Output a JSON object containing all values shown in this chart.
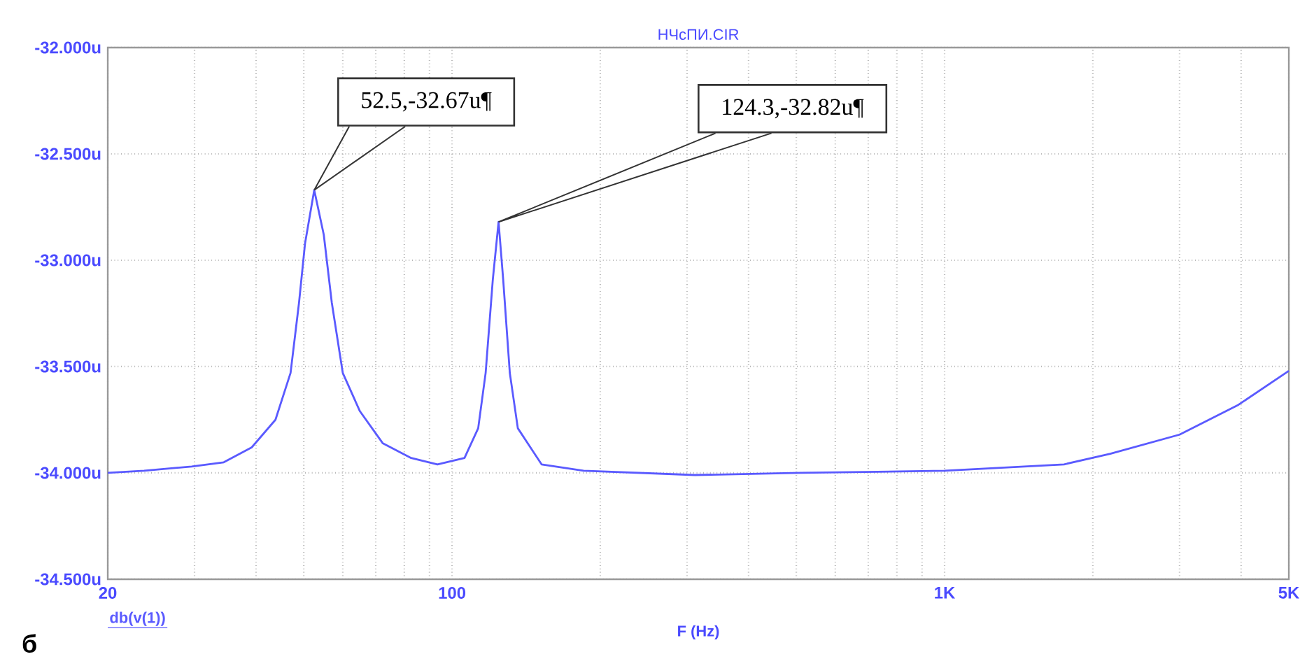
{
  "chart_data": {
    "type": "line",
    "title": "НЧсПИ.CIR",
    "xlabel": "F (Hz)",
    "log": "x",
    "grid": true,
    "xlim": [
      20,
      5000
    ],
    "ylim": [
      -34.5,
      -32.0
    ],
    "xticks": [
      20,
      {
        "value": 30,
        "label": null
      },
      {
        "value": 40,
        "label": null
      },
      {
        "value": 50,
        "label": null
      },
      {
        "value": 60,
        "label": null
      },
      {
        "value": 70,
        "label": null
      },
      {
        "value": 80,
        "label": null
      },
      {
        "value": 90,
        "label": null
      },
      100,
      {
        "value": 200,
        "label": null
      },
      {
        "value": 300,
        "label": null
      },
      {
        "value": 400,
        "label": null
      },
      {
        "value": 500,
        "label": null
      },
      {
        "value": 600,
        "label": null
      },
      {
        "value": 700,
        "label": null
      },
      {
        "value": 800,
        "label": null
      },
      {
        "value": 900,
        "label": null
      },
      {
        "value": 1000,
        "label": "1K"
      },
      {
        "value": 2000,
        "label": null
      },
      {
        "value": 3000,
        "label": null
      },
      {
        "value": 4000,
        "label": null
      },
      {
        "value": 5000,
        "label": "5K"
      }
    ],
    "yticks": [
      {
        "value": -34.5,
        "label": "-34.500u"
      },
      {
        "value": -34.0,
        "label": "-34.000u"
      },
      {
        "value": -33.5,
        "label": "-33.500u"
      },
      {
        "value": -33.0,
        "label": "-33.000u"
      },
      {
        "value": -32.5,
        "label": "-32.500u"
      },
      {
        "value": -32.0,
        "label": "-32.000u"
      }
    ],
    "series": [
      {
        "name": "db(v(1))",
        "color": "#5a5aff",
        "x": [
          20,
          23.7,
          29.6,
          34.4,
          39.2,
          43.8,
          47.0,
          48.9,
          50.3,
          52.5,
          54.9,
          57.0,
          60.0,
          65.0,
          72.3,
          82.6,
          93.4,
          106,
          113,
          117,
          121,
          124.3,
          127,
          131,
          136,
          152,
          185,
          311,
          510,
          1000,
          1748,
          2170,
          3000,
          3950,
          5000
        ],
        "values": [
          -34.0,
          -33.99,
          -33.97,
          -33.95,
          -33.88,
          -33.75,
          -33.53,
          -33.2,
          -32.92,
          -32.67,
          -32.88,
          -33.2,
          -33.53,
          -33.71,
          -33.86,
          -33.93,
          -33.96,
          -33.93,
          -33.79,
          -33.53,
          -33.09,
          -32.82,
          -33.09,
          -33.53,
          -33.79,
          -33.96,
          -33.99,
          -34.01,
          -34.0,
          -33.99,
          -33.96,
          -33.91,
          -33.82,
          -33.68,
          -33.52
        ]
      }
    ],
    "annotations": [
      {
        "text": "52.5,-32.67u¶",
        "x": 52.5,
        "y": -32.67
      },
      {
        "text": "124.3,-32.82u¶",
        "x": 124.3,
        "y": -32.82
      },
      "б"
    ]
  }
}
